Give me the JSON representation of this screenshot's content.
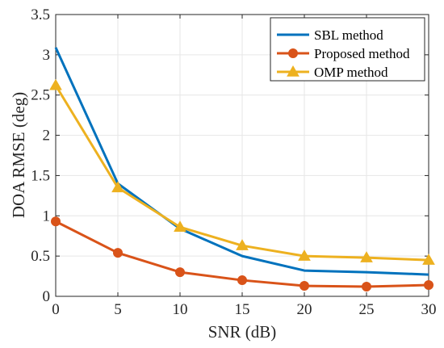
{
  "chart_data": {
    "type": "line",
    "title": "",
    "xlabel": "SNR (dB)",
    "ylabel": "DOA RMSE (deg)",
    "xlim": [
      0,
      30
    ],
    "ylim": [
      0,
      3.5
    ],
    "x_ticks": [
      "0",
      "5",
      "10",
      "15",
      "20",
      "25",
      "30"
    ],
    "y_ticks": [
      "0",
      "0.5",
      "1",
      "1.5",
      "2",
      "2.5",
      "3",
      "3.5"
    ],
    "grid": true,
    "legend_position": "top-right",
    "x": [
      0,
      5,
      10,
      15,
      20,
      25,
      30
    ],
    "series": [
      {
        "name": "SBL method",
        "color": "#0072BD",
        "marker": "none",
        "values": [
          3.09,
          1.4,
          0.84,
          0.5,
          0.32,
          0.3,
          0.27
        ]
      },
      {
        "name": "Proposed method",
        "color": "#D95319",
        "marker": "circle",
        "values": [
          0.93,
          0.54,
          0.3,
          0.2,
          0.13,
          0.12,
          0.14
        ]
      },
      {
        "name": "OMP method",
        "color": "#EDB120",
        "marker": "triangle",
        "values": [
          2.62,
          1.35,
          0.86,
          0.63,
          0.5,
          0.48,
          0.45
        ]
      }
    ]
  }
}
